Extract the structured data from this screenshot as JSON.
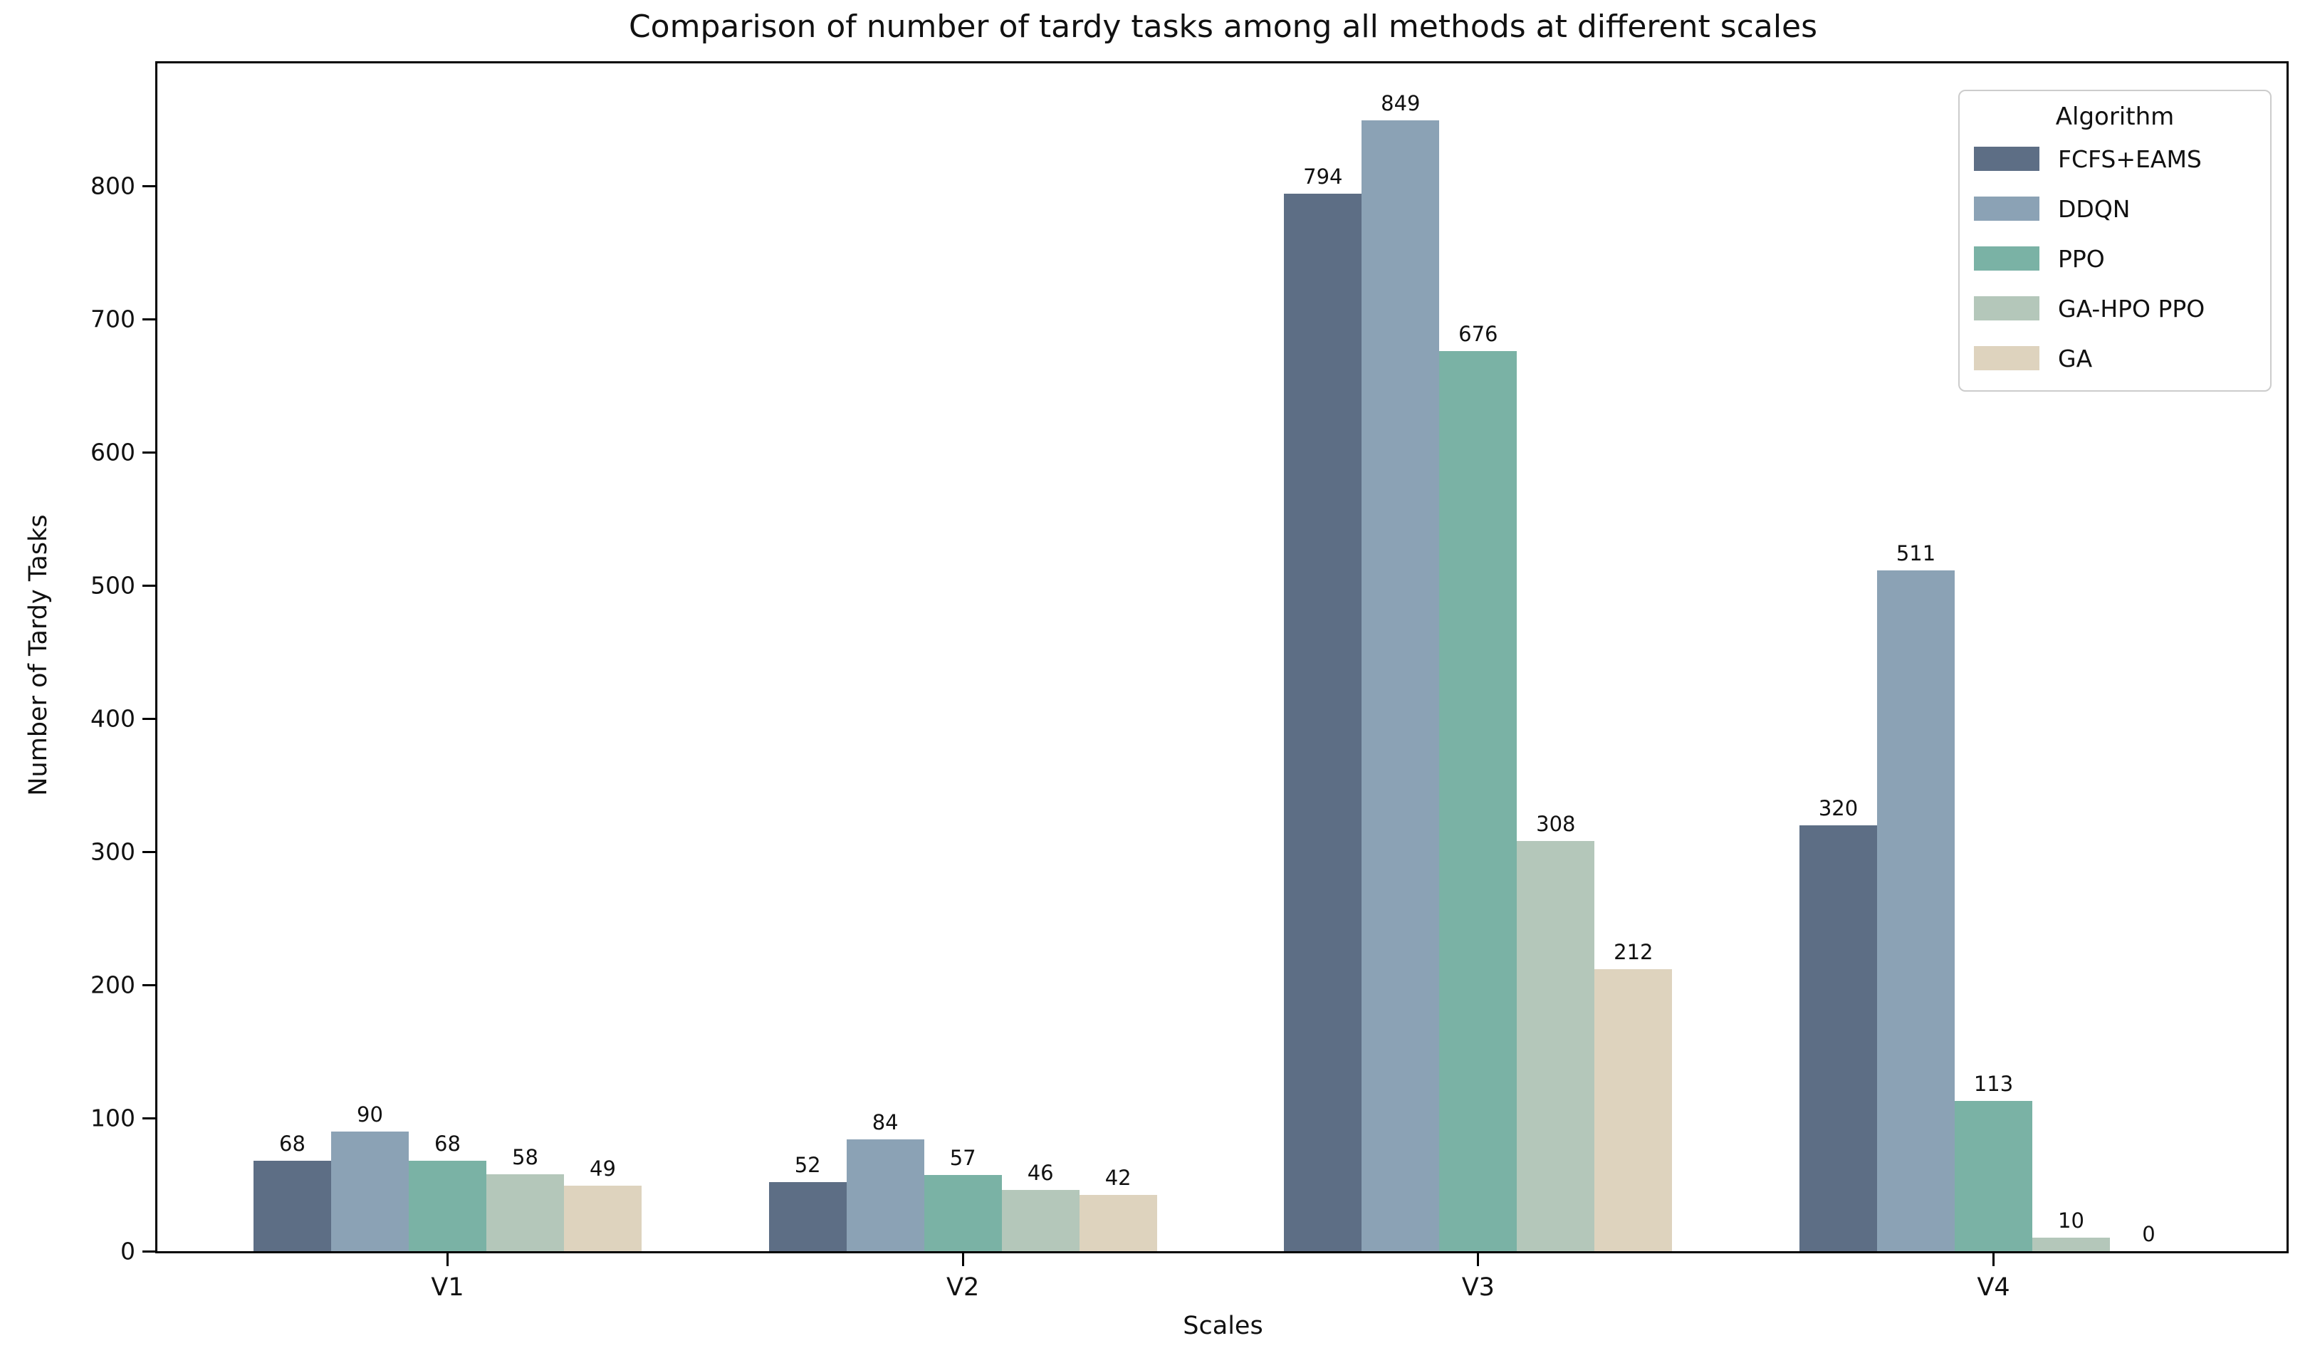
{
  "chart_data": {
    "type": "bar",
    "title": "Comparison of number of tardy tasks among all methods at different scales",
    "xlabel": "Scales",
    "ylabel": "Number of Tardy Tasks",
    "categories": [
      "V1",
      "V2",
      "V3",
      "V4"
    ],
    "series": [
      {
        "name": "FCFS+EAMS",
        "color": "#5d6e85",
        "values": [
          68,
          52,
          794,
          320
        ]
      },
      {
        "name": "DDQN",
        "color": "#8ba2b5",
        "values": [
          90,
          84,
          849,
          511
        ]
      },
      {
        "name": "PPO",
        "color": "#7ab2a5",
        "values": [
          68,
          57,
          676,
          113
        ]
      },
      {
        "name": "GA-HPO PPO",
        "color": "#b4c7ba",
        "values": [
          58,
          46,
          308,
          10
        ]
      },
      {
        "name": "GA",
        "color": "#ded3be",
        "values": [
          49,
          42,
          212,
          0
        ]
      }
    ],
    "yticks": [
      0,
      100,
      200,
      300,
      400,
      500,
      600,
      700,
      800
    ],
    "ylim": [
      0,
      892
    ],
    "grid": false,
    "bar_labels": true,
    "legend": {
      "title": "Algorithm",
      "position": "upper right",
      "entries": [
        "FCFS+EAMS",
        "DDQN",
        "PPO",
        "GA-HPO PPO",
        "GA"
      ]
    },
    "colors": {
      "axis": "#000000",
      "text": "#111111",
      "legend_border": "#cccccc",
      "background": "#ffffff"
    }
  }
}
